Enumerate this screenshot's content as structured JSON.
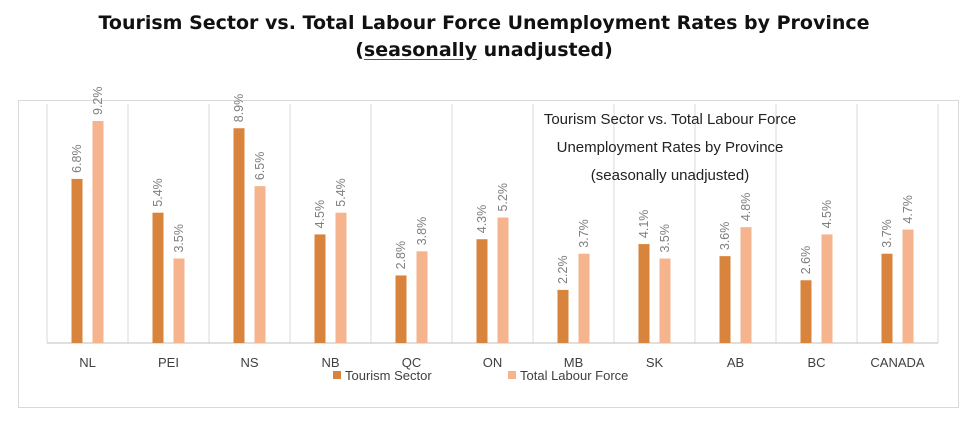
{
  "page": {
    "title": "Tourism Sector vs. Total Labour Force Unemployment Rates by Province",
    "subtitle_underlined": "seasonally",
    "subtitle_rest": " unadjusted)",
    "subtitle_open": "("
  },
  "chart_data": {
    "type": "bar",
    "title_lines": [
      "Tourism Sector vs. Total Labour Force",
      "Unemployment Rates by Province",
      "(seasonally unadjusted)"
    ],
    "categories": [
      "NL",
      "PEI",
      "NS",
      "NB",
      "QC",
      "ON",
      "MB",
      "SK",
      "AB",
      "BC",
      "CANADA"
    ],
    "series": [
      {
        "name": "Tourism Sector",
        "color": "#d9843c",
        "values": [
          6.8,
          5.4,
          8.9,
          4.5,
          2.8,
          4.3,
          2.2,
          4.1,
          3.6,
          2.6,
          3.7
        ],
        "labels": [
          "6.8%",
          "5.4%",
          "8.9%",
          "4.5%",
          "2.8%",
          "4.3%",
          "2.2%",
          "4.1%",
          "3.6%",
          "2.6%",
          "3.7%"
        ]
      },
      {
        "name": "Total Labour Force",
        "color": "#f6b48e",
        "values": [
          9.2,
          3.5,
          6.5,
          5.4,
          3.8,
          5.2,
          3.7,
          3.5,
          4.8,
          4.5,
          4.7
        ],
        "labels": [
          "9.2%",
          "3.5%",
          "6.5%",
          "5.4%",
          "3.8%",
          "5.2%",
          "3.7%",
          "3.5%",
          "4.8%",
          "4.5%",
          "4.7%"
        ]
      }
    ],
    "ylim": [
      0,
      9.2
    ],
    "grid": "vertical",
    "legend": "bottom"
  }
}
